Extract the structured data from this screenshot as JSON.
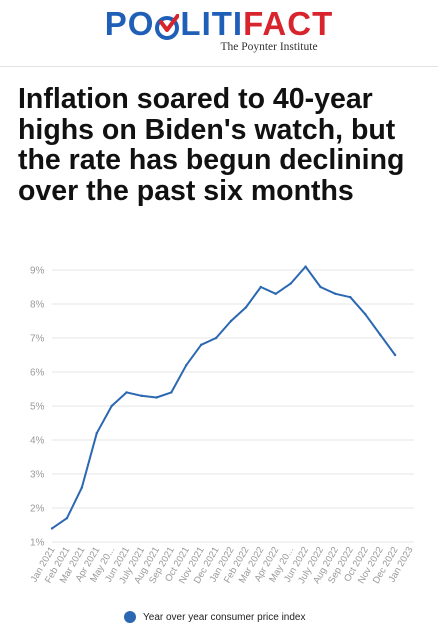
{
  "header": {
    "logo_part1": "POLITI",
    "logo_part2": "FACT",
    "tagline": "The Poynter Institute"
  },
  "headline": "Inflation soared to 40-year highs on Biden's watch, but the rate has begun declining over the past six months",
  "colors": {
    "line": "#2b68b1",
    "logo_blue": "#1f5fb8",
    "logo_red": "#d8252d",
    "grid": "#e6e6e6"
  },
  "chart_data": {
    "type": "line",
    "categories": [
      "Jan 2021",
      "Feb 2021",
      "Mar 2021",
      "Apr 2021",
      "May 20...",
      "Jun 2021",
      "July 2021",
      "Aug 2021",
      "Sep 2021",
      "Oct 2021",
      "Nov 2021",
      "Dec 2021",
      "Jan 2022",
      "Feb 2022",
      "Mar 2022",
      "Apr 2022",
      "May 20...",
      "Jun 2022",
      "July 2022",
      "Aug 2022",
      "Sep 2022",
      "Oct 2022",
      "Nov 2022",
      "Dec 2022",
      "Jan 2023"
    ],
    "series": [
      {
        "name": "Year over year consumer price index",
        "values": [
          1.4,
          1.7,
          2.6,
          4.2,
          5.0,
          5.4,
          5.3,
          5.25,
          5.4,
          6.2,
          6.8,
          7.0,
          7.5,
          7.9,
          8.5,
          8.3,
          8.6,
          9.1,
          8.5,
          8.3,
          8.2,
          7.7,
          7.1,
          6.5,
          null
        ]
      }
    ],
    "yticks": [
      "1%",
      "2%",
      "3%",
      "4%",
      "5%",
      "6%",
      "7%",
      "8%",
      "9%"
    ],
    "ylim": [
      1,
      9
    ],
    "grid": true,
    "legend_position": "bottom"
  }
}
